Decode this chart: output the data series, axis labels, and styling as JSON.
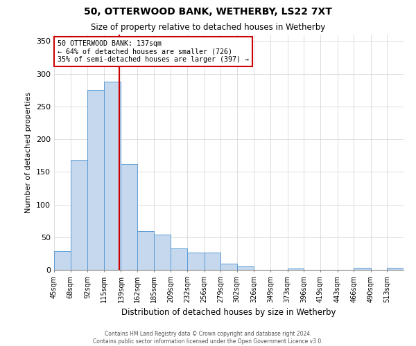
{
  "title": "50, OTTERWOOD BANK, WETHERBY, LS22 7XT",
  "subtitle": "Size of property relative to detached houses in Wetherby",
  "xlabel": "Distribution of detached houses by size in Wetherby",
  "ylabel": "Number of detached properties",
  "bin_labels": [
    "45sqm",
    "68sqm",
    "92sqm",
    "115sqm",
    "139sqm",
    "162sqm",
    "185sqm",
    "209sqm",
    "232sqm",
    "256sqm",
    "279sqm",
    "302sqm",
    "326sqm",
    "349sqm",
    "373sqm",
    "396sqm",
    "419sqm",
    "443sqm",
    "466sqm",
    "490sqm",
    "513sqm"
  ],
  "bar_heights": [
    29,
    168,
    275,
    288,
    162,
    59,
    54,
    33,
    27,
    27,
    10,
    5,
    0,
    0,
    2,
    0,
    0,
    0,
    3,
    0,
    3
  ],
  "bar_color": "#c5d8ed",
  "bar_edge_color": "#5b9bd5",
  "property_line_x": 137,
  "bin_edges": [
    45,
    68,
    92,
    115,
    139,
    162,
    185,
    209,
    232,
    256,
    279,
    302,
    326,
    349,
    373,
    396,
    419,
    443,
    466,
    490,
    513,
    536
  ],
  "annotation_title": "50 OTTERWOOD BANK: 137sqm",
  "annotation_line1": "← 64% of detached houses are smaller (726)",
  "annotation_line2": "35% of semi-detached houses are larger (397) →",
  "annotation_box_color": "#ffffff",
  "annotation_box_edge": "#cc0000",
  "vline_color": "#cc0000",
  "ylim": [
    0,
    360
  ],
  "yticks": [
    0,
    50,
    100,
    150,
    200,
    250,
    300,
    350
  ],
  "footer_line1": "Contains HM Land Registry data © Crown copyright and database right 2024.",
  "footer_line2": "Contains public sector information licensed under the Open Government Licence v3.0."
}
